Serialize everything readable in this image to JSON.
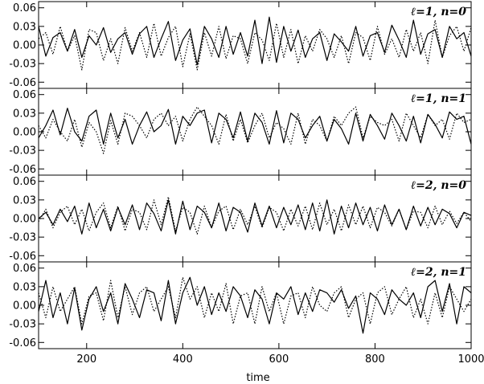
{
  "chart_data": {
    "type": "line",
    "xlabel": "time",
    "xlim": [
      100,
      1000
    ],
    "ylim": [
      -0.07,
      0.07
    ],
    "x_ticks": [
      200,
      400,
      600,
      800,
      1000
    ],
    "y_ticks": [
      -0.06,
      -0.03,
      0.0,
      0.03,
      0.06
    ],
    "y_tick_labels": [
      "-0.06",
      "-0.03",
      "0.00",
      "0.03",
      "0.06"
    ],
    "x": [
      100,
      115,
      130,
      145,
      160,
      175,
      190,
      205,
      220,
      235,
      250,
      265,
      280,
      295,
      310,
      325,
      340,
      355,
      370,
      385,
      400,
      415,
      430,
      445,
      460,
      475,
      490,
      505,
      520,
      535,
      550,
      565,
      580,
      595,
      610,
      625,
      640,
      655,
      670,
      685,
      700,
      715,
      730,
      745,
      760,
      775,
      790,
      805,
      820,
      835,
      850,
      865,
      880,
      895,
      910,
      925,
      940,
      955,
      970,
      985,
      1000
    ],
    "panels": [
      {
        "label": "ℓ=1, n=0",
        "series": [
          {
            "style": "solid",
            "values": [
              0.03,
              -0.018,
              0.012,
              0.02,
              -0.01,
              0.025,
              -0.02,
              0.015,
              0.0,
              0.028,
              -0.012,
              0.01,
              0.02,
              -0.015,
              0.018,
              0.03,
              -0.02,
              0.01,
              0.038,
              -0.025,
              0.008,
              0.026,
              -0.032,
              0.03,
              0.01,
              -0.02,
              0.03,
              -0.015,
              0.02,
              -0.018,
              0.04,
              -0.03,
              0.045,
              -0.028,
              0.03,
              -0.01,
              0.024,
              -0.02,
              0.01,
              0.02,
              -0.025,
              0.018,
              0.005,
              -0.01,
              0.03,
              -0.018,
              0.015,
              0.02,
              -0.012,
              0.032,
              0.008,
              -0.02,
              0.04,
              -0.015,
              0.018,
              0.025,
              -0.02,
              0.03,
              0.01,
              0.02,
              -0.018
            ]
          },
          {
            "style": "dotted",
            "values": [
              0.01,
              0.02,
              -0.015,
              0.03,
              -0.01,
              0.015,
              -0.04,
              0.025,
              0.02,
              -0.025,
              0.01,
              -0.03,
              0.028,
              -0.01,
              0.02,
              -0.02,
              0.035,
              -0.018,
              0.012,
              0.03,
              -0.035,
              0.018,
              -0.04,
              0.02,
              -0.018,
              0.03,
              -0.022,
              0.015,
              0.01,
              -0.03,
              0.02,
              0.008,
              -0.025,
              0.035,
              -0.02,
              0.025,
              -0.03,
              0.015,
              -0.01,
              0.025,
              0.01,
              -0.02,
              0.015,
              -0.03,
              0.02,
              0.012,
              -0.025,
              0.03,
              -0.015,
              0.01,
              -0.02,
              0.025,
              -0.01,
              0.02,
              -0.03,
              0.04,
              -0.02,
              0.015,
              0.03,
              -0.01,
              0.028
            ]
          }
        ]
      },
      {
        "label": "ℓ=1, n=1",
        "series": [
          {
            "style": "solid",
            "values": [
              -0.01,
              0.01,
              0.035,
              -0.005,
              0.038,
              0.0,
              -0.015,
              0.025,
              0.035,
              -0.02,
              0.03,
              -0.01,
              0.02,
              -0.02,
              0.01,
              0.032,
              0.0,
              0.01,
              0.036,
              -0.02,
              0.025,
              0.01,
              0.03,
              0.035,
              -0.018,
              0.03,
              0.02,
              -0.01,
              0.032,
              -0.015,
              0.03,
              0.015,
              -0.02,
              0.034,
              -0.018,
              0.03,
              0.02,
              -0.01,
              0.01,
              0.025,
              -0.015,
              0.02,
              0.005,
              -0.02,
              0.03,
              -0.015,
              0.028,
              0.01,
              -0.012,
              0.03,
              0.01,
              -0.015,
              0.025,
              -0.018,
              0.028,
              0.012,
              -0.01,
              0.032,
              0.02,
              0.025,
              -0.02
            ]
          },
          {
            "style": "dotted",
            "values": [
              0.01,
              -0.01,
              0.02,
              0.0,
              -0.015,
              0.02,
              -0.025,
              0.015,
              0.0,
              -0.035,
              0.018,
              -0.02,
              0.03,
              0.025,
              0.01,
              -0.01,
              0.02,
              0.03,
              0.01,
              0.025,
              -0.015,
              0.02,
              0.04,
              0.025,
              0.01,
              -0.02,
              0.028,
              -0.015,
              0.02,
              -0.018,
              0.01,
              0.03,
              -0.01,
              0.015,
              0.005,
              -0.02,
              0.03,
              -0.02,
              0.02,
              0.01,
              -0.015,
              0.025,
              0.01,
              0.03,
              0.04,
              -0.01,
              0.025,
              0.015,
              0.01,
              0.02,
              -0.015,
              0.03,
              0.01,
              -0.01,
              0.028,
              0.01,
              0.02,
              -0.012,
              0.03,
              0.015,
              0.02
            ]
          }
        ]
      },
      {
        "label": "ℓ=2, n=0",
        "series": [
          {
            "style": "solid",
            "values": [
              0.0,
              0.01,
              -0.01,
              0.015,
              -0.005,
              0.02,
              -0.025,
              0.025,
              -0.015,
              0.015,
              -0.02,
              0.018,
              -0.01,
              0.022,
              -0.018,
              0.025,
              0.008,
              -0.02,
              0.03,
              -0.025,
              0.028,
              -0.018,
              0.02,
              0.01,
              -0.015,
              0.025,
              -0.02,
              0.018,
              0.01,
              -0.022,
              0.025,
              -0.012,
              0.02,
              -0.015,
              0.018,
              -0.01,
              0.022,
              -0.018,
              0.025,
              -0.02,
              0.03,
              -0.025,
              0.02,
              -0.015,
              0.025,
              -0.01,
              0.018,
              -0.02,
              0.022,
              -0.01,
              0.015,
              -0.018,
              0.02,
              -0.012,
              0.018,
              -0.01,
              0.015,
              0.008,
              -0.015,
              0.01,
              0.005
            ]
          },
          {
            "style": "dotted",
            "values": [
              -0.005,
              0.015,
              -0.015,
              0.01,
              0.02,
              -0.01,
              0.015,
              -0.02,
              0.01,
              0.025,
              -0.015,
              0.02,
              -0.02,
              0.015,
              0.01,
              -0.018,
              0.03,
              -0.01,
              0.035,
              -0.02,
              0.018,
              0.01,
              -0.025,
              0.02,
              -0.015,
              0.012,
              0.02,
              -0.018,
              0.015,
              -0.01,
              0.02,
              -0.015,
              0.018,
              0.01,
              -0.02,
              0.015,
              -0.012,
              0.02,
              -0.018,
              0.025,
              -0.01,
              0.015,
              -0.02,
              0.022,
              -0.01,
              0.02,
              -0.015,
              0.018,
              0.01,
              -0.012,
              0.015,
              -0.018,
              0.012,
              0.01,
              -0.015,
              0.02,
              -0.01,
              0.012,
              -0.008,
              0.01,
              -0.005
            ]
          }
        ]
      },
      {
        "label": "ℓ=2, n=1",
        "series": [
          {
            "style": "solid",
            "values": [
              -0.01,
              0.04,
              -0.02,
              0.02,
              -0.03,
              0.028,
              -0.04,
              0.01,
              0.03,
              -0.01,
              0.02,
              -0.03,
              0.035,
              0.01,
              -0.02,
              0.025,
              0.02,
              -0.025,
              0.04,
              -0.03,
              0.02,
              0.045,
              0.0,
              0.03,
              -0.015,
              0.02,
              -0.01,
              0.03,
              0.015,
              -0.02,
              0.025,
              0.01,
              -0.03,
              0.02,
              0.01,
              0.03,
              -0.015,
              0.02,
              -0.01,
              0.025,
              0.02,
              0.005,
              0.025,
              -0.005,
              0.015,
              -0.045,
              0.02,
              0.01,
              -0.015,
              0.025,
              0.01,
              0.0,
              0.02,
              -0.02,
              0.03,
              0.04,
              -0.01,
              0.035,
              -0.03,
              0.03,
              0.02
            ]
          },
          {
            "style": "dotted",
            "values": [
              0.02,
              -0.02,
              0.03,
              -0.01,
              0.01,
              0.03,
              -0.03,
              0.015,
              0.02,
              -0.025,
              0.04,
              -0.02,
              0.03,
              -0.015,
              0.02,
              0.03,
              -0.01,
              0.01,
              0.03,
              -0.02,
              0.045,
              0.01,
              0.03,
              -0.02,
              0.02,
              -0.01,
              0.035,
              -0.03,
              0.015,
              0.02,
              -0.03,
              0.03,
              -0.01,
              0.02,
              -0.03,
              0.015,
              0.02,
              -0.02,
              0.03,
              0.0,
              -0.01,
              0.02,
              0.03,
              -0.02,
              0.01,
              0.02,
              -0.03,
              0.02,
              0.03,
              -0.015,
              0.01,
              0.03,
              -0.02,
              0.01,
              -0.03,
              0.02,
              -0.02,
              0.03,
              0.01,
              -0.01,
              0.01
            ]
          }
        ]
      }
    ]
  }
}
